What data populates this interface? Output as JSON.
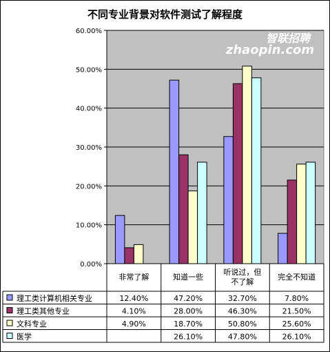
{
  "chart_data": {
    "type": "bar",
    "title": "不同专业背景对软件测试了解程度",
    "categories": [
      "非常了解",
      "知道一些",
      "听说过，但\n不了解",
      "完全不知道"
    ],
    "category_lines": [
      [
        "非常了解"
      ],
      [
        "知道一些"
      ],
      [
        "听说过，但",
        "不了解"
      ],
      [
        "完全不知道"
      ]
    ],
    "ylim": [
      0,
      60
    ],
    "yticks": [
      "0.00%",
      "10.00%",
      "20.00%",
      "30.00%",
      "40.00%",
      "50.00%",
      "60.00%"
    ],
    "grid": true,
    "legend": "data-table",
    "series": [
      {
        "name": "理工类计算机相关专业",
        "color": "#9999ff",
        "values": [
          12.4,
          47.2,
          32.7,
          7.8
        ],
        "labels": [
          "12.40%",
          "47.20%",
          "32.70%",
          "7.80%"
        ]
      },
      {
        "name": "理工类其他专业",
        "color": "#993366",
        "values": [
          4.1,
          28.0,
          46.3,
          21.5
        ],
        "labels": [
          "4.10%",
          "28.00%",
          "46.30%",
          "21.50%"
        ]
      },
      {
        "name": "文科专业",
        "color": "#ffffcc",
        "values": [
          4.9,
          18.7,
          50.8,
          25.6
        ],
        "labels": [
          "4.90%",
          "18.70%",
          "50.80%",
          "25.60%"
        ]
      },
      {
        "name": "医学",
        "color": "#ccffff",
        "values": [
          null,
          26.1,
          47.8,
          26.1
        ],
        "labels": [
          "",
          "26.10%",
          "47.80%",
          "26.10%"
        ]
      }
    ]
  },
  "watermark": {
    "cn": "智联招聘",
    "url": "zhaopin.com",
    "color": "#ffffff"
  },
  "colors": {
    "plot_bg": "#c0c0c0",
    "bar_border": "#000000"
  }
}
